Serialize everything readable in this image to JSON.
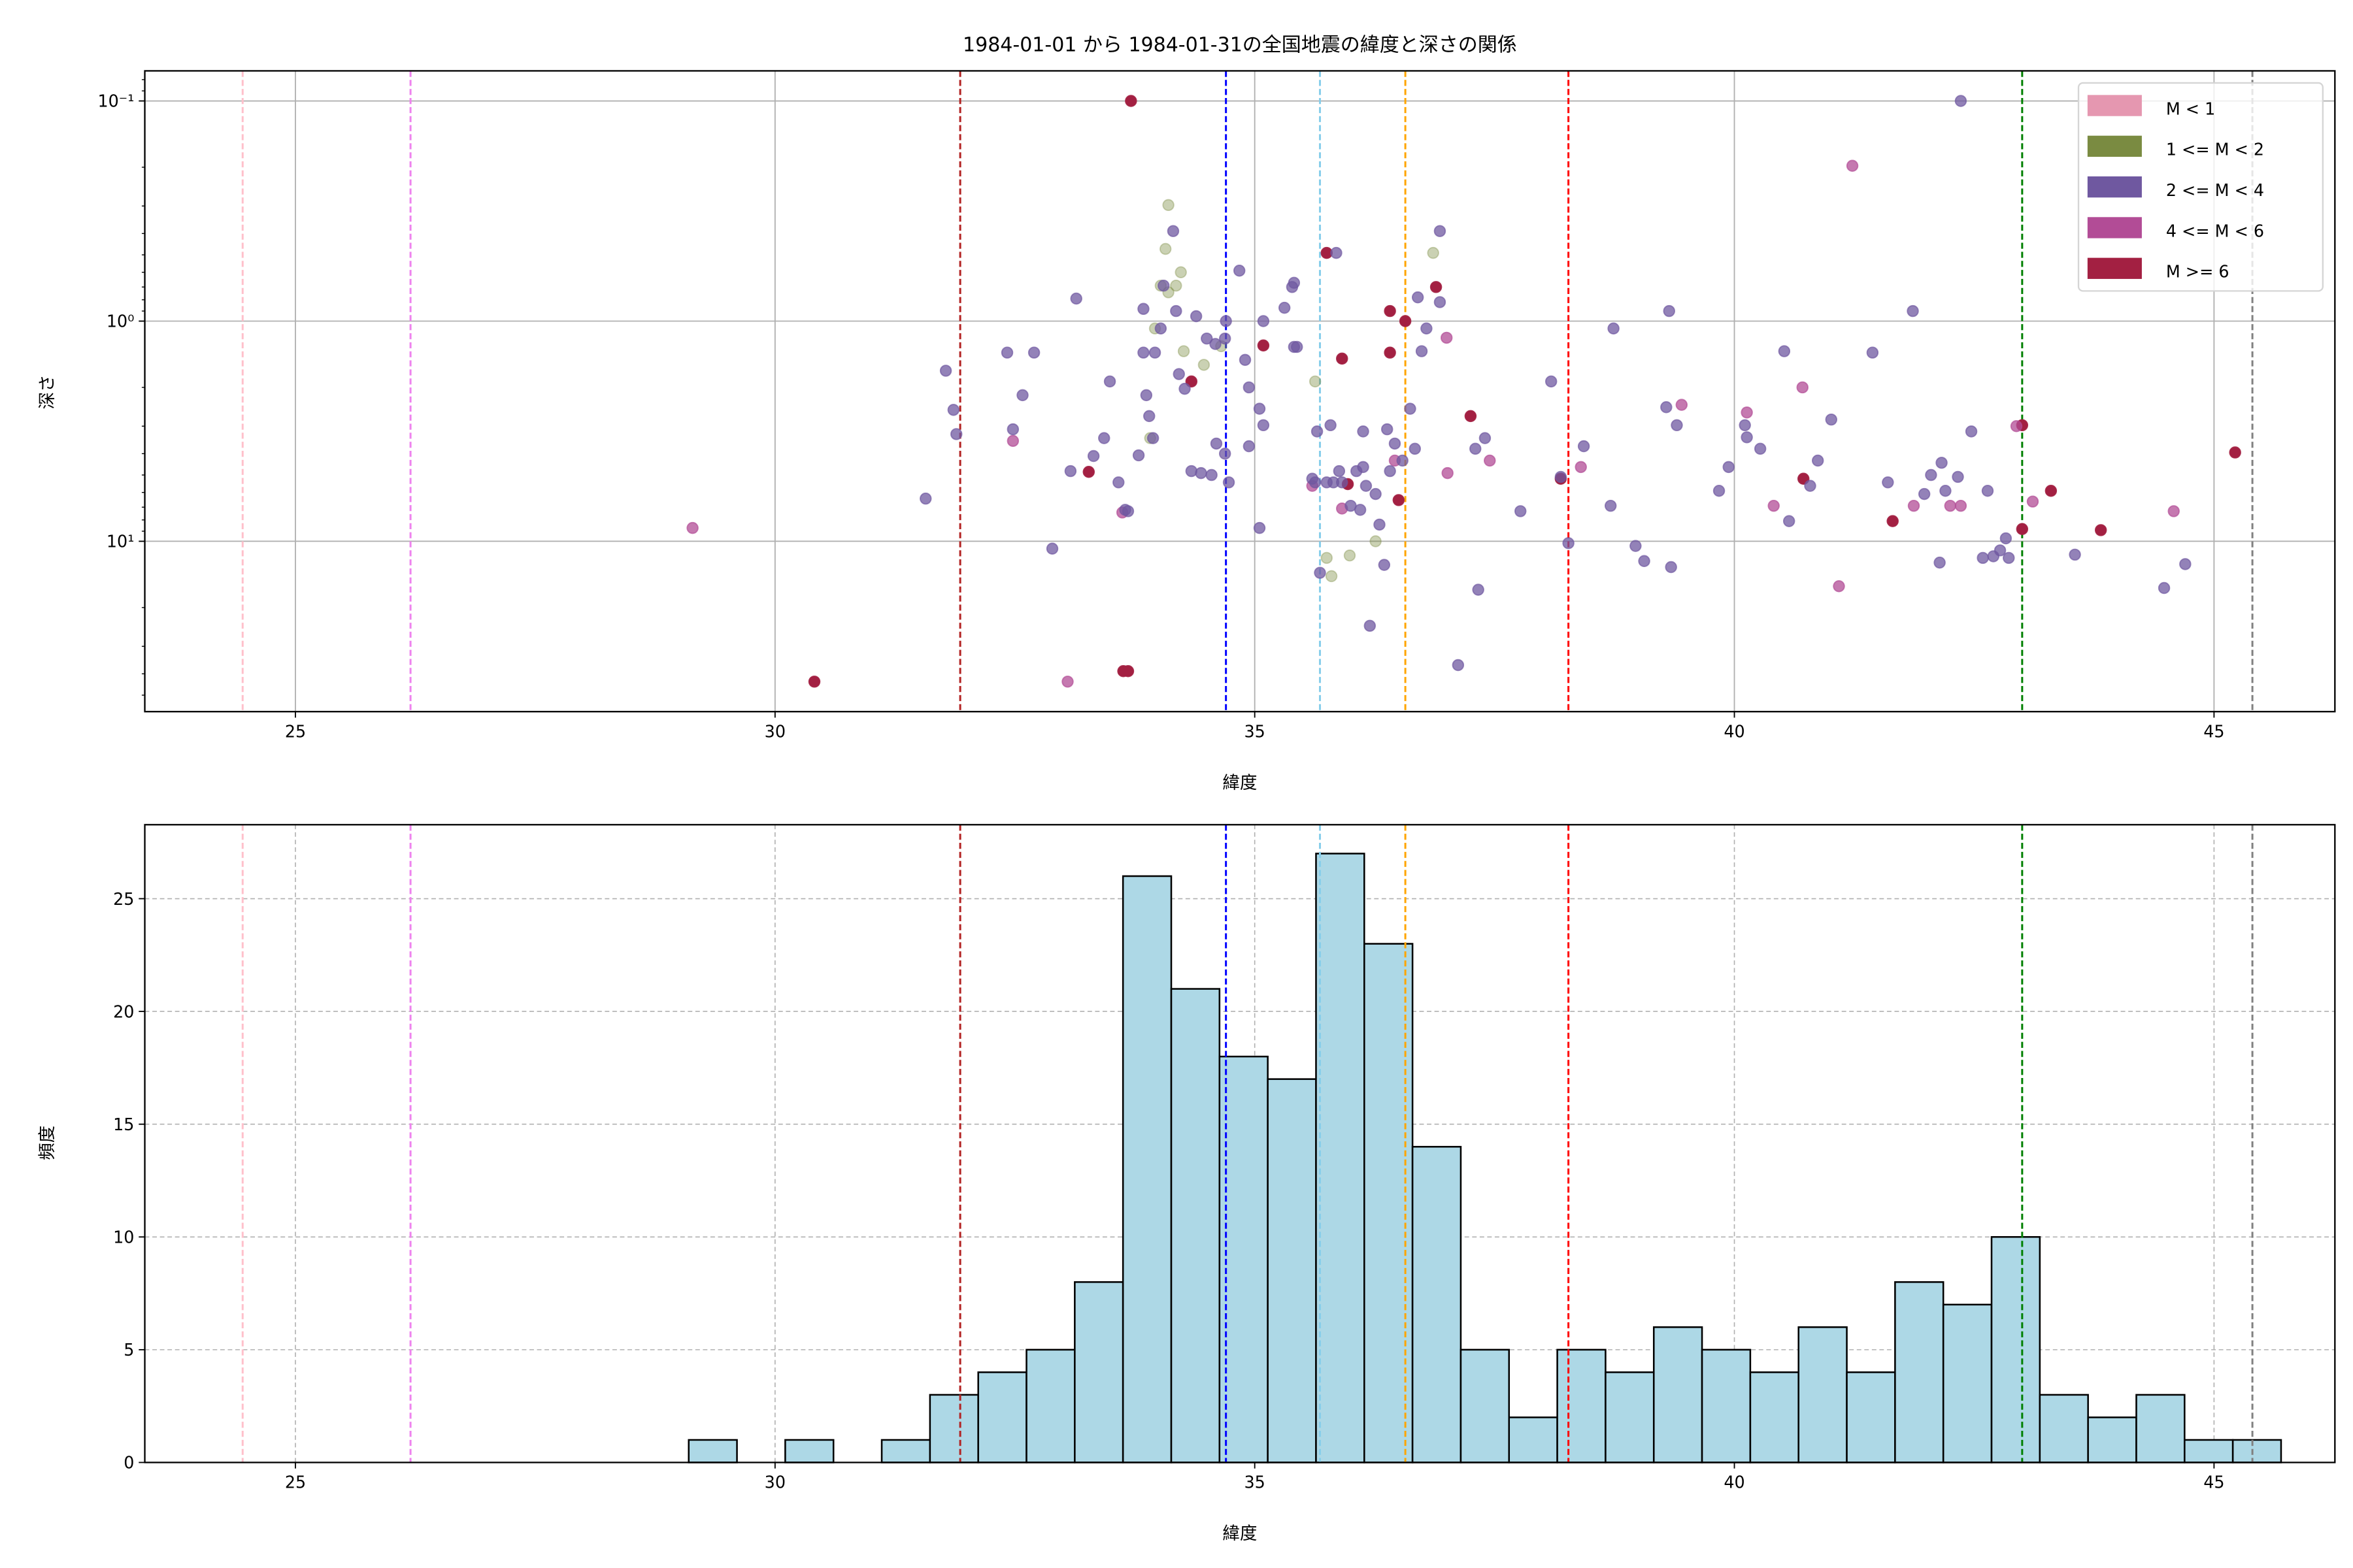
{
  "chart_data": [
    {
      "type": "scatter",
      "title": "1984-01-01 から 1984-01-31の全国地震の緯度と深さの関係",
      "xlabel": "緯度",
      "ylabel": "深さ",
      "xlim": [
        23.43,
        46.26
      ],
      "ylim": [
        59.4,
        0.073
      ],
      "yscale": "log",
      "y_inverted": true,
      "grid": true,
      "xticks": [
        25,
        30,
        35,
        40,
        45
      ],
      "xtick_labels": [
        "25",
        "30",
        "35",
        "40",
        "45"
      ],
      "yticks": [
        0.1,
        1,
        10
      ],
      "ytick_labels": [
        "10⁻¹",
        "10⁰",
        "10¹"
      ],
      "legend_position": "top-right",
      "legend": [
        {
          "label": "M < 1",
          "color": "#e597b0"
        },
        {
          "label": "1 <= M < 2",
          "color": "#7a8b41"
        },
        {
          "label": "2 <= M < 4",
          "color": "#6f58a0"
        },
        {
          "label": "4 <= M < 6",
          "color": "#b24c96"
        },
        {
          "label": "M >= 6",
          "color": "#a32042"
        }
      ],
      "points_format": [
        "latitude",
        "depth",
        "magnitude_class_index"
      ],
      "points": [
        [
          33.71,
          0.1,
          4
        ],
        [
          33.27,
          4.84,
          4
        ],
        [
          30.41,
          43.4,
          4
        ],
        [
          33.63,
          38.9,
          4
        ],
        [
          33.68,
          38.9,
          4
        ],
        [
          34.34,
          1.88,
          4
        ],
        [
          35.75,
          0.49,
          4
        ],
        [
          35.09,
          1.29,
          4
        ],
        [
          36.41,
          0.9,
          4
        ],
        [
          36.57,
          1.0,
          4
        ],
        [
          35.91,
          1.48,
          4
        ],
        [
          35.97,
          5.5,
          4
        ],
        [
          36.89,
          0.7,
          4
        ],
        [
          36.41,
          1.39,
          4
        ],
        [
          37.25,
          2.7,
          4
        ],
        [
          36.5,
          6.5,
          4
        ],
        [
          38.19,
          5.2,
          4
        ],
        [
          40.72,
          5.2,
          4
        ],
        [
          41.65,
          8.1,
          4
        ],
        [
          43.0,
          2.97,
          4
        ],
        [
          43.0,
          8.8,
          4
        ],
        [
          43.3,
          5.9,
          4
        ],
        [
          43.82,
          8.9,
          4
        ],
        [
          45.22,
          3.95,
          4
        ],
        [
          29.14,
          8.7,
          3
        ],
        [
          32.48,
          3.5,
          3
        ],
        [
          33.05,
          43.4,
          3
        ],
        [
          33.62,
          7.4,
          3
        ],
        [
          35.91,
          7.1,
          3
        ],
        [
          36.46,
          4.3,
          3
        ],
        [
          37.01,
          4.9,
          3
        ],
        [
          37.45,
          4.3,
          3
        ],
        [
          38.4,
          4.6,
          3
        ],
        [
          39.45,
          2.4,
          3
        ],
        [
          40.13,
          2.6,
          3
        ],
        [
          40.41,
          6.9,
          3
        ],
        [
          40.71,
          2.0,
          3
        ],
        [
          41.09,
          16,
          3
        ],
        [
          41.23,
          0.197,
          3
        ],
        [
          41.87,
          6.9,
          3
        ],
        [
          42.25,
          6.9,
          3
        ],
        [
          42.36,
          6.9,
          3
        ],
        [
          42.94,
          3.0,
          3
        ],
        [
          43.11,
          6.6,
          3
        ],
        [
          44.58,
          7.3,
          3
        ],
        [
          37.0,
          1.19,
          3
        ],
        [
          35.6,
          5.6,
          3
        ],
        [
          34.1,
          0.297,
          1
        ],
        [
          34.07,
          0.47,
          1
        ],
        [
          34.23,
          0.6,
          1
        ],
        [
          34.18,
          0.69,
          1
        ],
        [
          34.02,
          0.69,
          1
        ],
        [
          34.1,
          0.74,
          1
        ],
        [
          33.96,
          1.08,
          1
        ],
        [
          34.26,
          1.37,
          1
        ],
        [
          34.47,
          1.58,
          1
        ],
        [
          33.91,
          3.4,
          1
        ],
        [
          35.63,
          1.88,
          1
        ],
        [
          35.75,
          11.9,
          1
        ],
        [
          35.8,
          14.4,
          1
        ],
        [
          35.99,
          11.6,
          1
        ],
        [
          36.26,
          10.0,
          1
        ],
        [
          36.86,
          0.49,
          1
        ],
        [
          34.65,
          1.3,
          1
        ],
        [
          33.14,
          0.79,
          2
        ],
        [
          31.78,
          1.68,
          2
        ],
        [
          31.86,
          2.53,
          2
        ],
        [
          31.89,
          3.26,
          2
        ],
        [
          31.57,
          6.4,
          2
        ],
        [
          32.42,
          1.39,
          2
        ],
        [
          32.7,
          1.39,
          2
        ],
        [
          32.58,
          2.17,
          2
        ],
        [
          32.48,
          3.1,
          2
        ],
        [
          32.89,
          10.8,
          2
        ],
        [
          33.08,
          4.8,
          2
        ],
        [
          33.32,
          4.1,
          2
        ],
        [
          33.43,
          3.4,
          2
        ],
        [
          33.49,
          1.88,
          2
        ],
        [
          33.58,
          5.4,
          2
        ],
        [
          33.65,
          7.2,
          2
        ],
        [
          33.68,
          7.3,
          2
        ],
        [
          33.79,
          4.07,
          2
        ],
        [
          33.84,
          0.88,
          2
        ],
        [
          33.84,
          1.39,
          2
        ],
        [
          33.87,
          2.17,
          2
        ],
        [
          33.9,
          2.7,
          2
        ],
        [
          33.94,
          3.4,
          2
        ],
        [
          33.96,
          1.39,
          2
        ],
        [
          34.02,
          1.08,
          2
        ],
        [
          34.05,
          0.69,
          2
        ],
        [
          34.15,
          0.39,
          2
        ],
        [
          34.18,
          0.9,
          2
        ],
        [
          34.21,
          1.74,
          2
        ],
        [
          34.27,
          2.03,
          2
        ],
        [
          34.34,
          4.8,
          2
        ],
        [
          34.44,
          4.9,
          2
        ],
        [
          34.39,
          0.95,
          2
        ],
        [
          34.5,
          1.2,
          2
        ],
        [
          34.55,
          5.0,
          2
        ],
        [
          34.59,
          1.27,
          2
        ],
        [
          34.6,
          3.6,
          2
        ],
        [
          34.69,
          4.0,
          2
        ],
        [
          34.7,
          1.0,
          2
        ],
        [
          34.73,
          5.4,
          2
        ],
        [
          34.69,
          1.2,
          2
        ],
        [
          34.84,
          0.59,
          2
        ],
        [
          34.94,
          2.0,
          2
        ],
        [
          34.94,
          3.7,
          2
        ],
        [
          34.9,
          1.5,
          2
        ],
        [
          35.05,
          8.7,
          2
        ],
        [
          35.05,
          2.5,
          2
        ],
        [
          35.09,
          2.97,
          2
        ],
        [
          35.09,
          1.0,
          2
        ],
        [
          35.31,
          0.87,
          2
        ],
        [
          35.41,
          0.67,
          2
        ],
        [
          35.39,
          0.7,
          2
        ],
        [
          35.41,
          1.31,
          2
        ],
        [
          35.44,
          1.31,
          2
        ],
        [
          35.6,
          5.2,
          2
        ],
        [
          35.63,
          5.4,
          2
        ],
        [
          35.68,
          13.9,
          2
        ],
        [
          35.65,
          3.17,
          2
        ],
        [
          35.75,
          5.4,
          2
        ],
        [
          35.79,
          2.97,
          2
        ],
        [
          35.85,
          0.49,
          2
        ],
        [
          35.82,
          5.4,
          2
        ],
        [
          35.88,
          4.8,
          2
        ],
        [
          35.91,
          5.4,
          2
        ],
        [
          36.0,
          6.9,
          2
        ],
        [
          36.06,
          4.8,
          2
        ],
        [
          36.13,
          4.6,
          2
        ],
        [
          36.1,
          7.2,
          2
        ],
        [
          36.13,
          3.17,
          2
        ],
        [
          36.16,
          5.6,
          2
        ],
        [
          36.2,
          24.2,
          2
        ],
        [
          36.26,
          6.1,
          2
        ],
        [
          36.3,
          8.4,
          2
        ],
        [
          36.35,
          12.8,
          2
        ],
        [
          36.38,
          3.1,
          2
        ],
        [
          36.41,
          4.8,
          2
        ],
        [
          36.46,
          3.6,
          2
        ],
        [
          36.54,
          4.3,
          2
        ],
        [
          36.62,
          2.5,
          2
        ],
        [
          36.67,
          3.8,
          2
        ],
        [
          36.7,
          0.78,
          2
        ],
        [
          36.74,
          1.37,
          2
        ],
        [
          36.79,
          1.08,
          2
        ],
        [
          36.93,
          0.39,
          2
        ],
        [
          36.93,
          0.82,
          2
        ],
        [
          37.12,
          36.5,
          2
        ],
        [
          37.33,
          16.6,
          2
        ],
        [
          37.3,
          3.8,
          2
        ],
        [
          37.4,
          3.4,
          2
        ],
        [
          37.77,
          7.3,
          2
        ],
        [
          38.09,
          1.88,
          2
        ],
        [
          38.19,
          5.1,
          2
        ],
        [
          38.27,
          10.2,
          2
        ],
        [
          38.43,
          3.7,
          2
        ],
        [
          38.71,
          6.9,
          2
        ],
        [
          38.74,
          1.08,
          2
        ],
        [
          38.97,
          10.5,
          2
        ],
        [
          39.06,
          12.3,
          2
        ],
        [
          39.29,
          2.46,
          2
        ],
        [
          39.32,
          0.9,
          2
        ],
        [
          39.34,
          13.1,
          2
        ],
        [
          39.4,
          2.97,
          2
        ],
        [
          39.84,
          5.9,
          2
        ],
        [
          39.94,
          4.6,
          2
        ],
        [
          40.11,
          2.97,
          2
        ],
        [
          40.13,
          3.37,
          2
        ],
        [
          40.27,
          3.8,
          2
        ],
        [
          40.52,
          1.37,
          2
        ],
        [
          40.57,
          8.1,
          2
        ],
        [
          40.79,
          5.6,
          2
        ],
        [
          40.87,
          4.3,
          2
        ],
        [
          41.01,
          2.8,
          2
        ],
        [
          41.44,
          1.39,
          2
        ],
        [
          41.6,
          5.4,
          2
        ],
        [
          41.86,
          0.9,
          2
        ],
        [
          41.98,
          6.1,
          2
        ],
        [
          42.05,
          5.0,
          2
        ],
        [
          42.14,
          12.5,
          2
        ],
        [
          42.2,
          5.9,
          2
        ],
        [
          42.16,
          4.4,
          2
        ],
        [
          42.36,
          0.1,
          2
        ],
        [
          42.33,
          5.1,
          2
        ],
        [
          42.47,
          3.17,
          2
        ],
        [
          42.64,
          5.9,
          2
        ],
        [
          42.59,
          11.9,
          2
        ],
        [
          42.7,
          11.7,
          2
        ],
        [
          42.77,
          11.0,
          2
        ],
        [
          42.83,
          9.7,
          2
        ],
        [
          42.86,
          11.9,
          2
        ],
        [
          43.55,
          11.5,
          2
        ],
        [
          44.48,
          16.3,
          2
        ],
        [
          44.7,
          12.7,
          2
        ]
      ]
    },
    {
      "type": "bar",
      "subtype": "histogram",
      "xlabel": "緯度",
      "ylabel": "頻度",
      "xlim": [
        23.43,
        46.26
      ],
      "ylim": [
        0,
        28.28
      ],
      "grid": true,
      "grid_style": "dashed",
      "xticks": [
        25,
        30,
        35,
        40,
        45
      ],
      "xtick_labels": [
        "25",
        "30",
        "35",
        "40",
        "45"
      ],
      "yticks": [
        0,
        5,
        10,
        15,
        20,
        25
      ],
      "ytick_labels": [
        "0",
        "5",
        "10",
        "15",
        "20",
        "25"
      ],
      "bin_start": 29.1,
      "bin_width": 0.503,
      "counts": [
        1,
        0,
        1,
        0,
        1,
        3,
        4,
        5,
        8,
        26,
        21,
        18,
        17,
        27,
        23,
        14,
        5,
        2,
        5,
        4,
        6,
        5,
        4,
        6,
        4,
        8,
        7,
        10,
        3,
        2,
        3,
        1,
        1
      ],
      "bar_color": "#add8e6",
      "edge_color": "#000000"
    }
  ],
  "reference_lines": [
    {
      "latitude": 24.45,
      "color": "#ffc0cb"
    },
    {
      "latitude": 26.2,
      "color": "#ee82ee"
    },
    {
      "latitude": 31.93,
      "color": "#b22222"
    },
    {
      "latitude": 34.7,
      "color": "#0000ff"
    },
    {
      "latitude": 35.68,
      "color": "#87ceeb"
    },
    {
      "latitude": 36.57,
      "color": "#ffa500"
    },
    {
      "latitude": 38.27,
      "color": "#ff0000"
    },
    {
      "latitude": 43.0,
      "color": "#008000"
    },
    {
      "latitude": 45.4,
      "color": "#808080"
    }
  ]
}
